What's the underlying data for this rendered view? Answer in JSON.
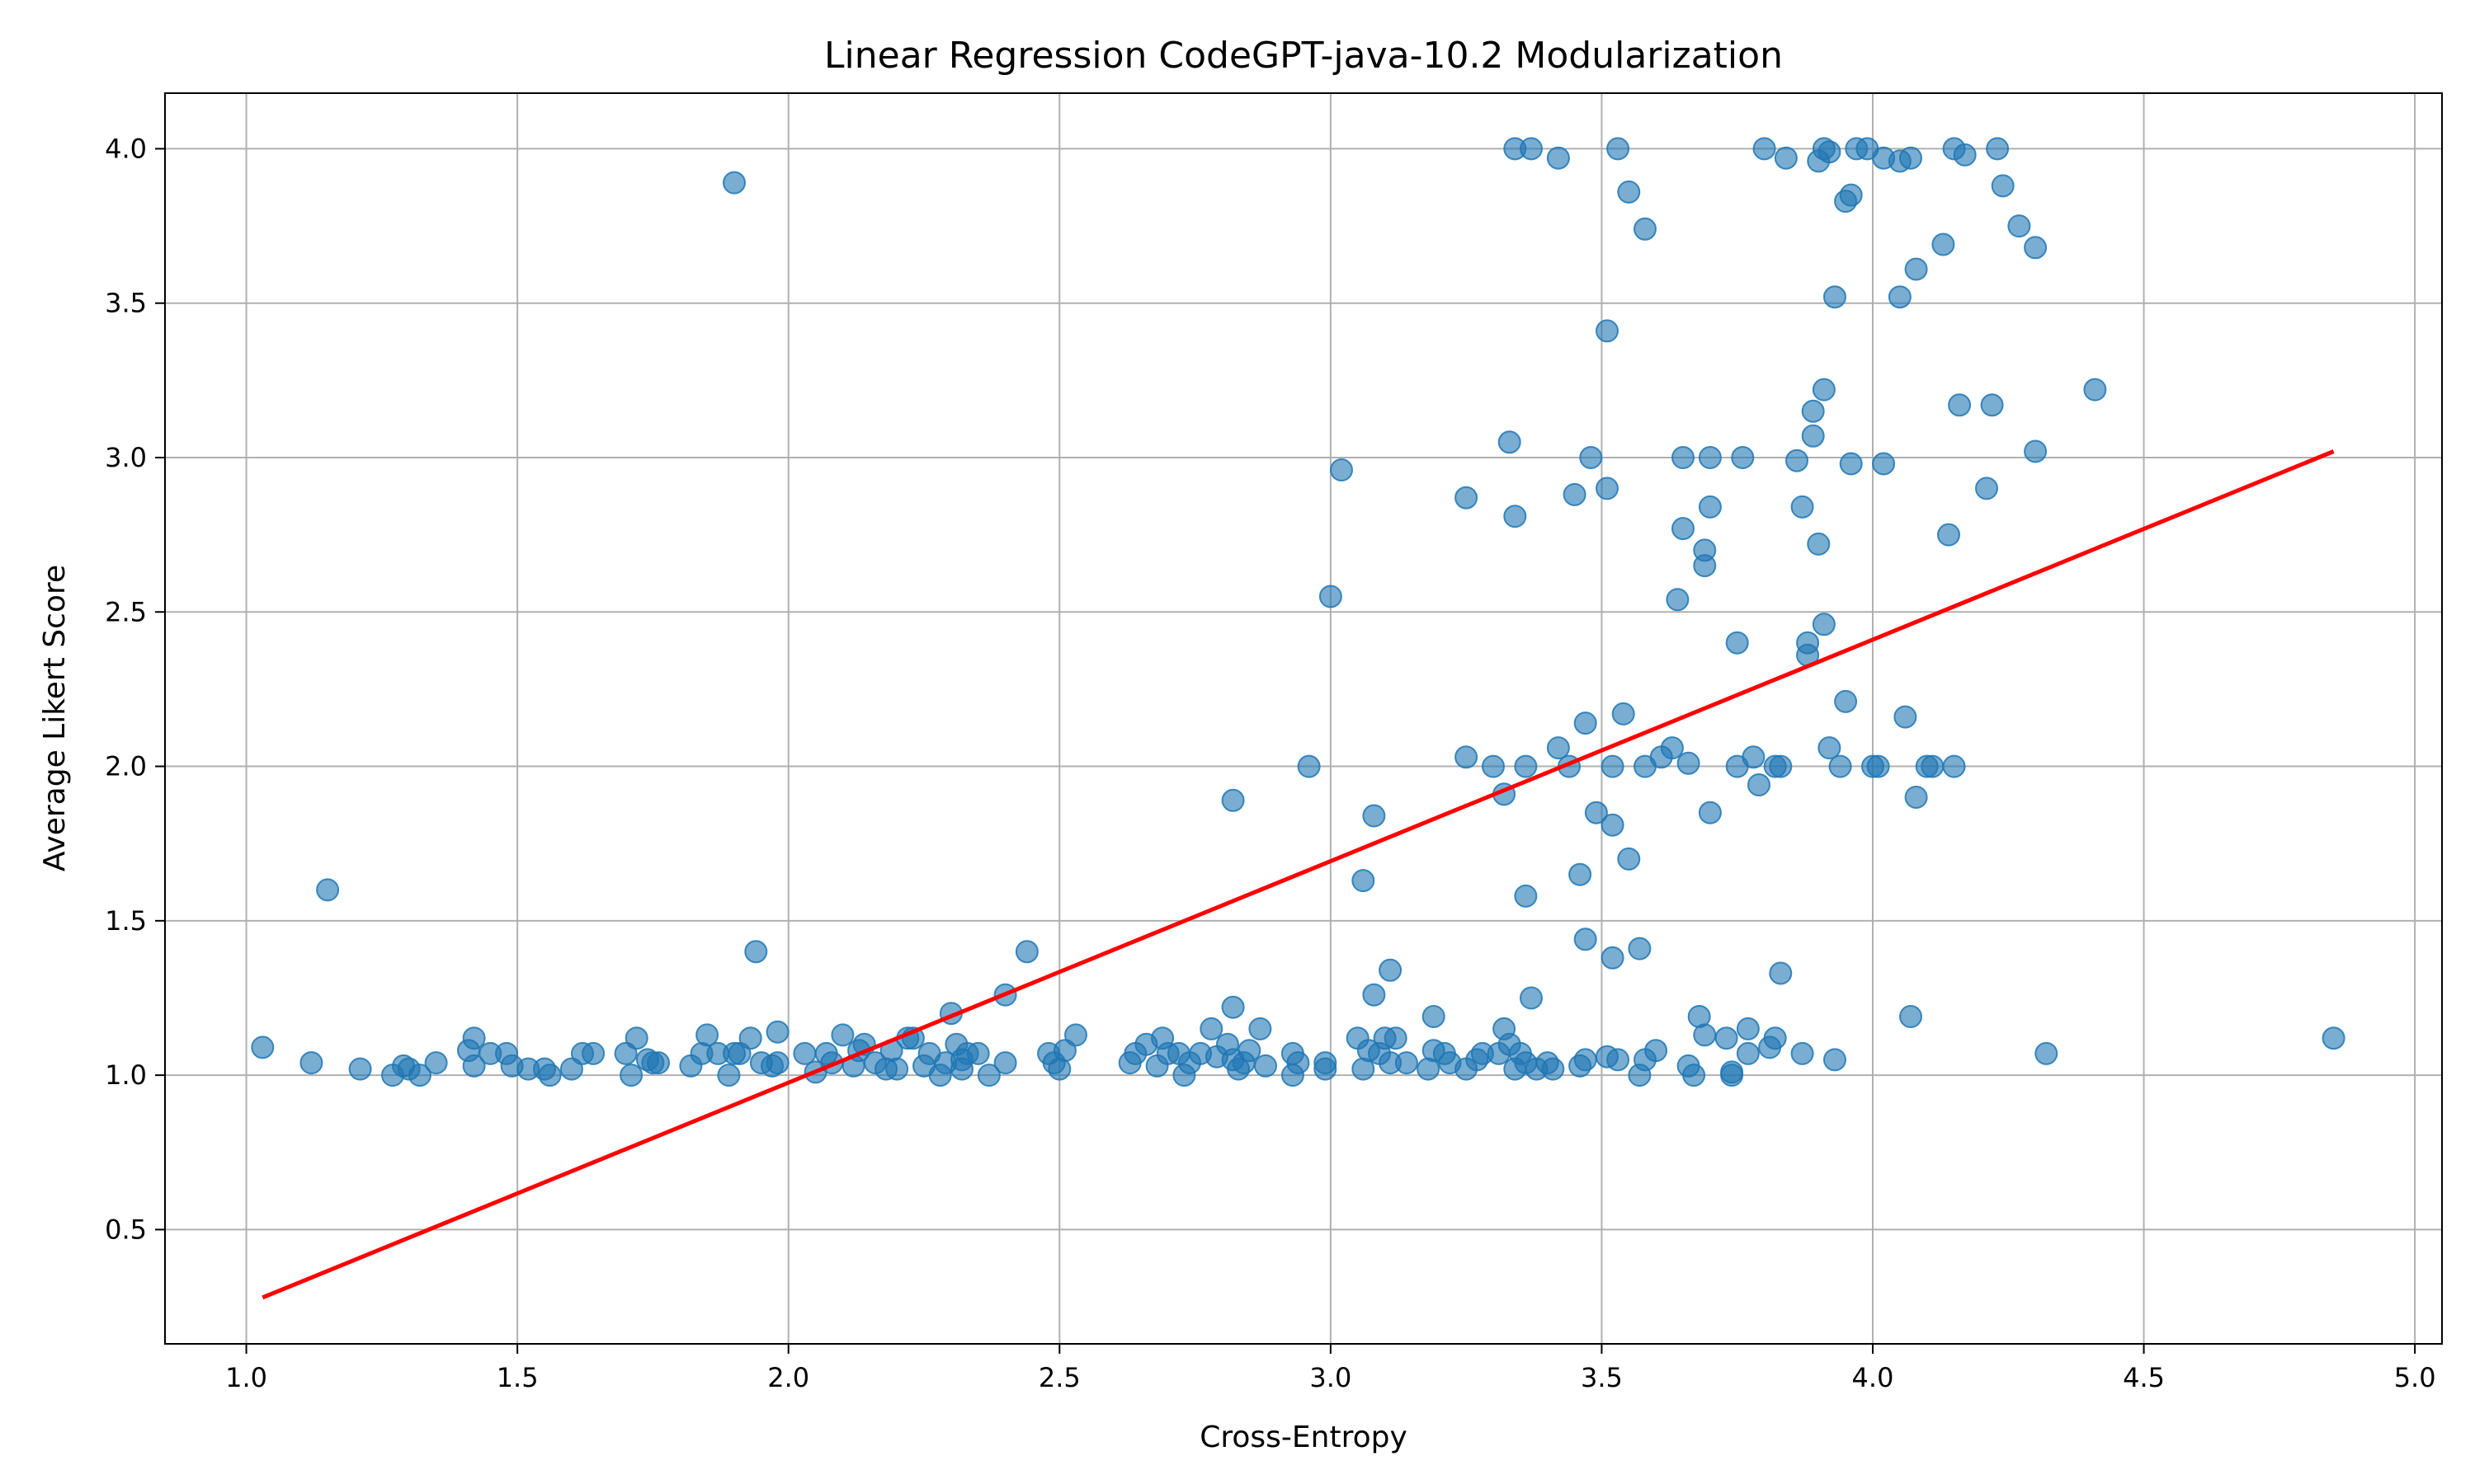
{
  "chart_data": {
    "type": "scatter",
    "title": "Linear Regression CodeGPT-java-10.2 Modularization",
    "xlabel": "Cross-Entropy",
    "ylabel": "Average Likert Score",
    "xlim": [
      0.85,
      5.05
    ],
    "ylim": [
      0.13,
      4.18
    ],
    "xticks": [
      1.0,
      1.5,
      2.0,
      2.5,
      3.0,
      3.5,
      4.0,
      4.5,
      5.0
    ],
    "xtick_labels": [
      "1.0",
      "1.5",
      "2.0",
      "2.5",
      "3.0",
      "3.5",
      "4.0",
      "4.5",
      "5.0"
    ],
    "yticks": [
      0.5,
      1.0,
      1.5,
      2.0,
      2.5,
      3.0,
      3.5,
      4.0
    ],
    "ytick_labels": [
      "0.5",
      "1.0",
      "1.5",
      "2.0",
      "2.5",
      "3.0",
      "3.5",
      "4.0"
    ],
    "grid": true,
    "point_color": "#1f77b4",
    "line_color": "#ff0000",
    "regression_line": {
      "x": [
        1.03,
        4.85
      ],
      "y": [
        0.28,
        3.02
      ]
    },
    "points": [
      [
        1.03,
        1.09
      ],
      [
        1.12,
        1.04
      ],
      [
        1.15,
        1.6
      ],
      [
        1.21,
        1.02
      ],
      [
        1.27,
        1.0
      ],
      [
        1.29,
        1.03
      ],
      [
        1.3,
        1.02
      ],
      [
        1.32,
        1.0
      ],
      [
        1.35,
        1.04
      ],
      [
        1.41,
        1.08
      ],
      [
        1.42,
        1.12
      ],
      [
        1.42,
        1.03
      ],
      [
        1.45,
        1.07
      ],
      [
        1.48,
        1.07
      ],
      [
        1.49,
        1.03
      ],
      [
        1.52,
        1.02
      ],
      [
        1.55,
        1.02
      ],
      [
        1.56,
        1.0
      ],
      [
        1.6,
        1.02
      ],
      [
        1.62,
        1.07
      ],
      [
        1.64,
        1.07
      ],
      [
        1.7,
        1.07
      ],
      [
        1.71,
        1.0
      ],
      [
        1.72,
        1.12
      ],
      [
        1.74,
        1.05
      ],
      [
        1.75,
        1.04
      ],
      [
        1.76,
        1.04
      ],
      [
        1.82,
        1.03
      ],
      [
        1.84,
        1.07
      ],
      [
        1.85,
        1.13
      ],
      [
        1.87,
        1.07
      ],
      [
        1.89,
        1.0
      ],
      [
        1.9,
        1.07
      ],
      [
        1.9,
        3.89
      ],
      [
        1.91,
        1.07
      ],
      [
        1.93,
        1.12
      ],
      [
        1.94,
        1.4
      ],
      [
        1.95,
        1.04
      ],
      [
        1.97,
        1.03
      ],
      [
        1.98,
        1.14
      ],
      [
        1.98,
        1.04
      ],
      [
        2.03,
        1.07
      ],
      [
        2.05,
        1.01
      ],
      [
        2.07,
        1.07
      ],
      [
        2.08,
        1.04
      ],
      [
        2.1,
        1.13
      ],
      [
        2.12,
        1.03
      ],
      [
        2.13,
        1.08
      ],
      [
        2.14,
        1.1
      ],
      [
        2.16,
        1.04
      ],
      [
        2.18,
        1.02
      ],
      [
        2.19,
        1.08
      ],
      [
        2.2,
        1.02
      ],
      [
        2.22,
        1.12
      ],
      [
        2.23,
        1.12
      ],
      [
        2.25,
        1.03
      ],
      [
        2.26,
        1.07
      ],
      [
        2.28,
        1.0
      ],
      [
        2.29,
        1.04
      ],
      [
        2.3,
        1.2
      ],
      [
        2.31,
        1.1
      ],
      [
        2.32,
        1.05
      ],
      [
        2.32,
        1.02
      ],
      [
        2.33,
        1.07
      ],
      [
        2.35,
        1.07
      ],
      [
        2.37,
        1.0
      ],
      [
        2.4,
        1.04
      ],
      [
        2.4,
        1.26
      ],
      [
        2.44,
        1.4
      ],
      [
        2.48,
        1.07
      ],
      [
        2.49,
        1.04
      ],
      [
        2.5,
        1.02
      ],
      [
        2.51,
        1.08
      ],
      [
        2.53,
        1.13
      ],
      [
        2.63,
        1.04
      ],
      [
        2.64,
        1.07
      ],
      [
        2.66,
        1.1
      ],
      [
        2.68,
        1.03
      ],
      [
        2.69,
        1.12
      ],
      [
        2.7,
        1.07
      ],
      [
        2.72,
        1.07
      ],
      [
        2.73,
        1.0
      ],
      [
        2.74,
        1.04
      ],
      [
        2.76,
        1.07
      ],
      [
        2.78,
        1.15
      ],
      [
        2.79,
        1.06
      ],
      [
        2.81,
        1.1
      ],
      [
        2.82,
        1.05
      ],
      [
        2.82,
        1.22
      ],
      [
        2.82,
        1.89
      ],
      [
        2.83,
        1.02
      ],
      [
        2.84,
        1.04
      ],
      [
        2.85,
        1.08
      ],
      [
        2.87,
        1.15
      ],
      [
        2.88,
        1.03
      ],
      [
        2.93,
        1.0
      ],
      [
        2.93,
        1.07
      ],
      [
        2.94,
        1.04
      ],
      [
        2.96,
        2.0
      ],
      [
        2.99,
        1.04
      ],
      [
        2.99,
        1.02
      ],
      [
        3.0,
        2.55
      ],
      [
        3.02,
        2.96
      ],
      [
        3.05,
        1.12
      ],
      [
        3.06,
        1.02
      ],
      [
        3.06,
        1.63
      ],
      [
        3.07,
        1.08
      ],
      [
        3.08,
        1.26
      ],
      [
        3.08,
        1.84
      ],
      [
        3.09,
        1.07
      ],
      [
        3.1,
        1.12
      ],
      [
        3.11,
        1.04
      ],
      [
        3.11,
        1.34
      ],
      [
        3.12,
        1.12
      ],
      [
        3.14,
        1.04
      ],
      [
        3.18,
        1.02
      ],
      [
        3.19,
        1.08
      ],
      [
        3.19,
        1.19
      ],
      [
        3.21,
        1.07
      ],
      [
        3.22,
        1.04
      ],
      [
        3.25,
        1.02
      ],
      [
        3.25,
        2.03
      ],
      [
        3.25,
        2.87
      ],
      [
        3.27,
        1.05
      ],
      [
        3.28,
        1.07
      ],
      [
        3.3,
        2.0
      ],
      [
        3.31,
        1.07
      ],
      [
        3.32,
        1.15
      ],
      [
        3.32,
        1.91
      ],
      [
        3.33,
        1.1
      ],
      [
        3.33,
        3.05
      ],
      [
        3.34,
        1.02
      ],
      [
        3.34,
        2.81
      ],
      [
        3.34,
        4.0
      ],
      [
        3.35,
        1.07
      ],
      [
        3.36,
        1.04
      ],
      [
        3.36,
        1.58
      ],
      [
        3.36,
        2.0
      ],
      [
        3.37,
        1.25
      ],
      [
        3.37,
        4.0
      ],
      [
        3.38,
        1.02
      ],
      [
        3.4,
        1.04
      ],
      [
        3.41,
        1.02
      ],
      [
        3.42,
        2.06
      ],
      [
        3.42,
        3.97
      ],
      [
        3.44,
        2.0
      ],
      [
        3.45,
        2.88
      ],
      [
        3.46,
        1.03
      ],
      [
        3.46,
        1.65
      ],
      [
        3.47,
        1.05
      ],
      [
        3.47,
        1.44
      ],
      [
        3.47,
        2.14
      ],
      [
        3.48,
        3.0
      ],
      [
        3.49,
        1.85
      ],
      [
        3.51,
        1.06
      ],
      [
        3.51,
        2.9
      ],
      [
        3.51,
        3.41
      ],
      [
        3.52,
        1.81
      ],
      [
        3.52,
        1.38
      ],
      [
        3.52,
        2.0
      ],
      [
        3.53,
        4.0
      ],
      [
        3.53,
        1.05
      ],
      [
        3.54,
        2.17
      ],
      [
        3.55,
        3.86
      ],
      [
        3.55,
        1.7
      ],
      [
        3.57,
        1.0
      ],
      [
        3.57,
        1.41
      ],
      [
        3.58,
        1.05
      ],
      [
        3.58,
        2.0
      ],
      [
        3.58,
        3.74
      ],
      [
        3.6,
        1.08
      ],
      [
        3.61,
        2.03
      ],
      [
        3.63,
        2.06
      ],
      [
        3.64,
        2.54
      ],
      [
        3.65,
        2.77
      ],
      [
        3.65,
        3.0
      ],
      [
        3.66,
        1.03
      ],
      [
        3.66,
        2.01
      ],
      [
        3.67,
        1.0
      ],
      [
        3.68,
        1.19
      ],
      [
        3.69,
        1.13
      ],
      [
        3.69,
        2.65
      ],
      [
        3.69,
        2.7
      ],
      [
        3.7,
        1.85
      ],
      [
        3.7,
        2.84
      ],
      [
        3.7,
        3.0
      ],
      [
        3.73,
        1.12
      ],
      [
        3.74,
        1.0
      ],
      [
        3.74,
        1.01
      ],
      [
        3.75,
        2.0
      ],
      [
        3.75,
        2.4
      ],
      [
        3.76,
        3.0
      ],
      [
        3.77,
        1.07
      ],
      [
        3.77,
        1.15
      ],
      [
        3.78,
        2.03
      ],
      [
        3.79,
        1.94
      ],
      [
        3.8,
        4.0
      ],
      [
        3.81,
        1.09
      ],
      [
        3.82,
        1.12
      ],
      [
        3.82,
        2.0
      ],
      [
        3.83,
        1.33
      ],
      [
        3.83,
        2.0
      ],
      [
        3.84,
        3.97
      ],
      [
        3.86,
        2.99
      ],
      [
        3.87,
        1.07
      ],
      [
        3.87,
        2.84
      ],
      [
        3.88,
        2.36
      ],
      [
        3.88,
        2.4
      ],
      [
        3.89,
        3.07
      ],
      [
        3.89,
        3.15
      ],
      [
        3.9,
        2.72
      ],
      [
        3.9,
        3.96
      ],
      [
        3.91,
        2.46
      ],
      [
        3.91,
        3.22
      ],
      [
        3.91,
        4.0
      ],
      [
        3.92,
        2.06
      ],
      [
        3.92,
        3.99
      ],
      [
        3.93,
        1.05
      ],
      [
        3.93,
        3.52
      ],
      [
        3.94,
        2.0
      ],
      [
        3.95,
        2.21
      ],
      [
        3.95,
        3.83
      ],
      [
        3.96,
        2.98
      ],
      [
        3.96,
        3.85
      ],
      [
        3.97,
        4.0
      ],
      [
        3.99,
        4.0
      ],
      [
        4.0,
        2.0
      ],
      [
        4.01,
        2.0
      ],
      [
        4.02,
        2.98
      ],
      [
        4.02,
        3.97
      ],
      [
        4.05,
        3.52
      ],
      [
        4.05,
        3.96
      ],
      [
        4.06,
        2.16
      ],
      [
        4.07,
        1.19
      ],
      [
        4.07,
        3.97
      ],
      [
        4.08,
        3.61
      ],
      [
        4.08,
        1.9
      ],
      [
        4.1,
        2.0
      ],
      [
        4.11,
        2.0
      ],
      [
        4.13,
        3.69
      ],
      [
        4.14,
        2.75
      ],
      [
        4.15,
        2.0
      ],
      [
        4.15,
        4.0
      ],
      [
        4.16,
        3.17
      ],
      [
        4.17,
        3.98
      ],
      [
        4.21,
        2.9
      ],
      [
        4.22,
        3.17
      ],
      [
        4.23,
        4.0
      ],
      [
        4.24,
        3.88
      ],
      [
        4.27,
        3.75
      ],
      [
        4.3,
        3.02
      ],
      [
        4.3,
        3.68
      ],
      [
        4.32,
        1.07
      ],
      [
        4.41,
        3.22
      ],
      [
        4.85,
        1.12
      ]
    ]
  }
}
